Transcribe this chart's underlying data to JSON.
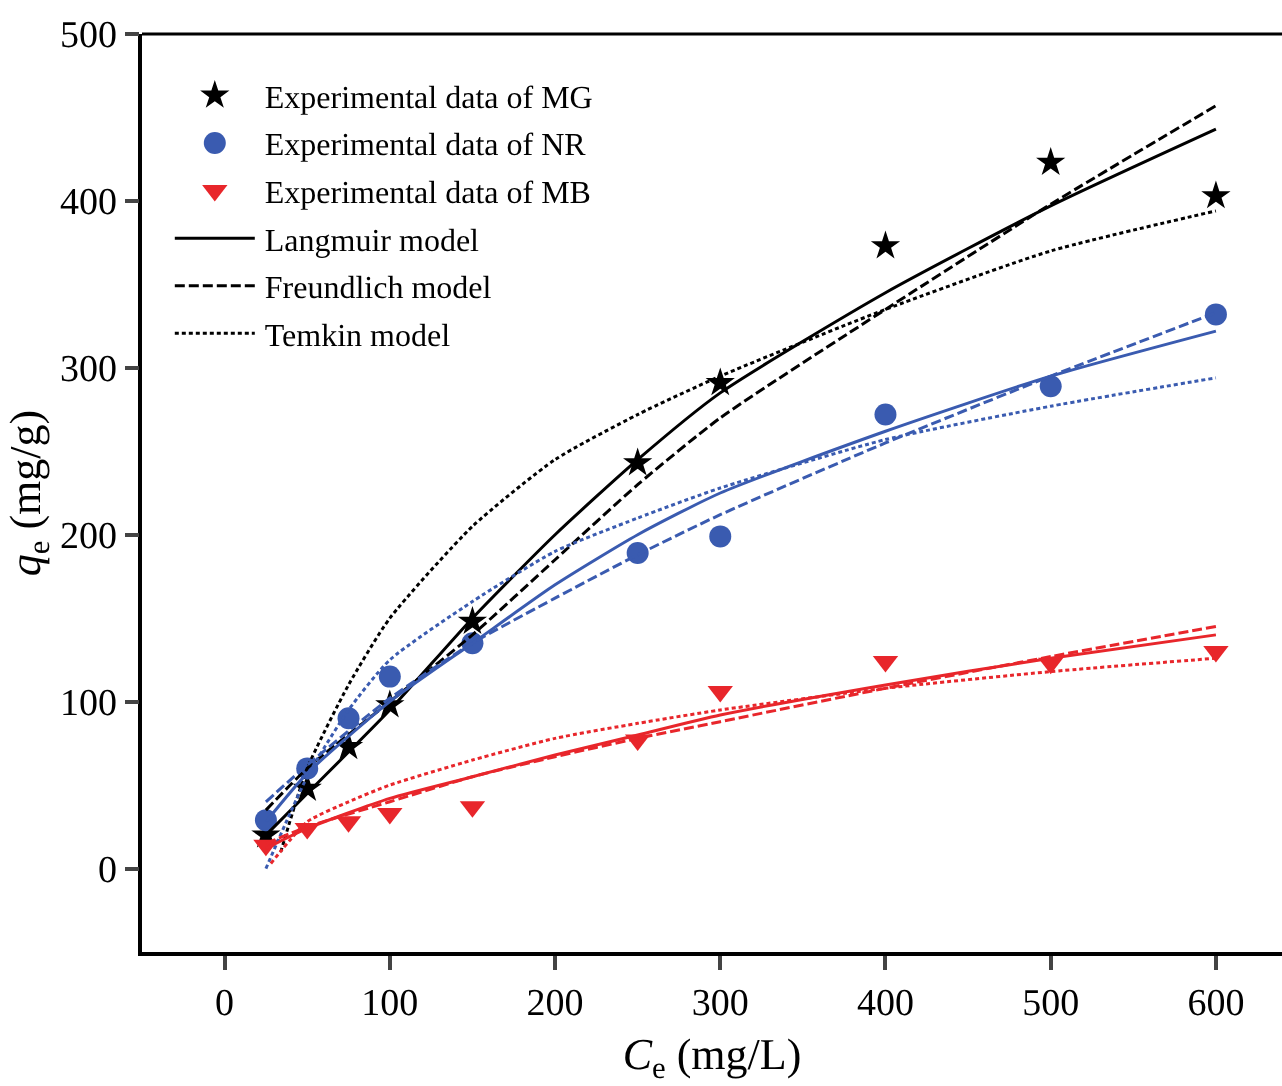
{
  "chart_data": {
    "type": "scatter",
    "xlabel": "C$_{e}$ (mg/L)",
    "ylabel": "q$_{e}$ (mg/g)",
    "xlim": [
      -50,
      640
    ],
    "ylim": [
      -50,
      500
    ],
    "xticks": [
      0,
      100,
      200,
      300,
      400,
      500,
      600
    ],
    "yticks": [
      0,
      100,
      200,
      300,
      400,
      500
    ],
    "legend": "top left",
    "series": [
      {
        "name": "Experimental data of MG",
        "marker": "star",
        "color": "#000000",
        "x": [
          25,
          50,
          75,
          100,
          150,
          250,
          300,
          400,
          500,
          600
        ],
        "values": [
          20,
          48,
          73,
          98,
          148,
          243,
          291,
          373,
          423,
          403
        ]
      },
      {
        "name": "Experimental data of NR",
        "marker": "circle",
        "color": "#3a5bb0",
        "x": [
          25,
          50,
          75,
          100,
          150,
          250,
          300,
          400,
          500,
          600
        ],
        "values": [
          29,
          60,
          90,
          115,
          135,
          189,
          199,
          272,
          289,
          332
        ]
      },
      {
        "name": "Experimental data of MB",
        "marker": "triangle",
        "color": "#e8262b",
        "x": [
          25,
          50,
          75,
          100,
          150,
          250,
          300,
          400,
          500,
          600
        ],
        "values": [
          14,
          24,
          28,
          33,
          37,
          77,
          106,
          124,
          123,
          130
        ]
      },
      {
        "name": "Langmuir model",
        "type": "line",
        "line_style": "solid",
        "color": "#000000",
        "x": [
          25,
          50,
          100,
          150,
          200,
          250,
          300,
          400,
          500,
          600
        ],
        "values": [
          20,
          45,
          95,
          150,
          200,
          245,
          285,
          345,
          397,
          443
        ]
      },
      {
        "name": "Freundlich model",
        "type": "line",
        "line_style": "dashed",
        "color": "#000000",
        "x": [
          25,
          50,
          100,
          150,
          200,
          250,
          300,
          400,
          500,
          600
        ],
        "values": [
          35,
          60,
          100,
          140,
          185,
          230,
          270,
          335,
          398,
          457
        ]
      },
      {
        "name": "Temkin model",
        "type": "line",
        "line_style": "dotted",
        "color": "#000000",
        "x": [
          34,
          50,
          75,
          100,
          150,
          200,
          250,
          300,
          400,
          500,
          600
        ],
        "values": [
          10,
          60,
          110,
          150,
          205,
          245,
          272,
          295,
          335,
          370,
          394
        ]
      },
      {
        "type": "line",
        "line_style": "solid",
        "color": "#3a5bb0",
        "x": [
          25,
          50,
          100,
          150,
          200,
          250,
          300,
          400,
          500,
          600
        ],
        "values": [
          28,
          57,
          100,
          135,
          170,
          200,
          225,
          262,
          295,
          322
        ]
      },
      {
        "type": "line",
        "line_style": "dashed",
        "color": "#3a5bb0",
        "x": [
          25,
          50,
          100,
          150,
          200,
          250,
          300,
          400,
          500,
          600
        ],
        "values": [
          40,
          62,
          102,
          135,
          162,
          188,
          212,
          255,
          295,
          333
        ]
      },
      {
        "type": "line",
        "line_style": "dotted",
        "color": "#3a5bb0",
        "x": [
          25,
          50,
          75,
          100,
          150,
          200,
          250,
          300,
          400,
          500,
          600
        ],
        "values": [
          0,
          55,
          95,
          125,
          160,
          190,
          210,
          228,
          257,
          277,
          294
        ]
      },
      {
        "type": "line",
        "line_style": "solid",
        "color": "#e8262b",
        "x": [
          25,
          50,
          100,
          150,
          200,
          250,
          300,
          400,
          500,
          600
        ],
        "values": [
          12,
          24,
          42,
          55,
          68,
          80,
          92,
          110,
          126,
          140
        ]
      },
      {
        "type": "line",
        "line_style": "dashed",
        "color": "#e8262b",
        "x": [
          25,
          50,
          100,
          150,
          200,
          250,
          300,
          400,
          500,
          600
        ],
        "values": [
          15,
          25,
          40,
          55,
          67,
          78,
          88,
          108,
          127,
          145
        ]
      },
      {
        "type": "line",
        "line_style": "dotted",
        "color": "#e8262b",
        "x": [
          28,
          50,
          75,
          100,
          150,
          200,
          250,
          300,
          400,
          500,
          600
        ],
        "values": [
          3,
          28,
          40,
          50,
          65,
          78,
          87,
          95,
          108,
          118,
          126
        ]
      }
    ]
  }
}
